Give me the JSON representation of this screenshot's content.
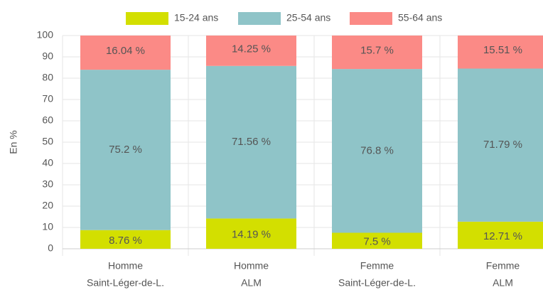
{
  "chart_data": {
    "type": "stacked_bar",
    "categories": [
      [
        "Homme",
        "Saint-Léger-de-L."
      ],
      [
        "Homme",
        "ALM"
      ],
      [
        "Femme",
        "Saint-Léger-de-L."
      ],
      [
        "Femme",
        "ALM"
      ]
    ],
    "y_label": "En %",
    "ylim": [
      0,
      100
    ],
    "yticks": [
      0,
      10,
      20,
      30,
      40,
      50,
      60,
      70,
      80,
      90,
      100
    ],
    "grid": true,
    "series": [
      {
        "name": "15-24 ans",
        "color": "#d3df00",
        "values": [
          8.76,
          14.19,
          7.5,
          12.71
        ],
        "value_labels": [
          "8.76 %",
          "14.19 %",
          "7.5 %",
          "12.71 %"
        ]
      },
      {
        "name": "25-54 ans",
        "color": "#8fc4c8",
        "values": [
          75.2,
          71.56,
          76.8,
          71.79
        ],
        "value_labels": [
          "75.2 %",
          "71.56 %",
          "76.8 %",
          "71.79 %"
        ]
      },
      {
        "name": "55-64 ans",
        "color": "#fb8a86",
        "values": [
          16.04,
          14.25,
          15.7,
          15.51
        ],
        "value_labels": [
          "16.04 %",
          "14.25 %",
          "15.7 %",
          "15.51 %"
        ]
      }
    ]
  }
}
